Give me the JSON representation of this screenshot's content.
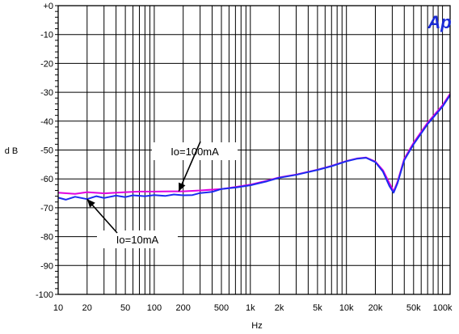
{
  "chart_data": {
    "type": "line",
    "xscale": "log",
    "xlim": [
      10,
      120000
    ],
    "ylim": [
      -100,
      0
    ],
    "xlabel": "Hz",
    "ylabel": "d B",
    "xticks": [
      {
        "v": 10,
        "label": "10"
      },
      {
        "v": 20,
        "label": "20"
      },
      {
        "v": 50,
        "label": "50"
      },
      {
        "v": 100,
        "label": "100"
      },
      {
        "v": 200,
        "label": "200"
      },
      {
        "v": 500,
        "label": "500"
      },
      {
        "v": 1000,
        "label": "1k"
      },
      {
        "v": 2000,
        "label": "2k"
      },
      {
        "v": 5000,
        "label": "5k"
      },
      {
        "v": 10000,
        "label": "10k"
      },
      {
        "v": 20000,
        "label": "20k"
      },
      {
        "v": 50000,
        "label": "50k"
      },
      {
        "v": 100000,
        "label": "100k"
      }
    ],
    "yticks": [
      {
        "v": 0,
        "label": "+0"
      },
      {
        "v": -10,
        "label": "-10"
      },
      {
        "v": -20,
        "label": "-20"
      },
      {
        "v": -30,
        "label": "-30"
      },
      {
        "v": -40,
        "label": "-40"
      },
      {
        "v": -50,
        "label": "-50"
      },
      {
        "v": -60,
        "label": "-60"
      },
      {
        "v": -70,
        "label": "-70"
      },
      {
        "v": -80,
        "label": "-80"
      },
      {
        "v": -90,
        "label": "-90"
      },
      {
        "v": -100,
        "label": "-100"
      }
    ],
    "grid": true,
    "logo": "Ap",
    "series": [
      {
        "name": "Io=100mA",
        "color": "#e000e0",
        "points": [
          [
            10,
            -64.8
          ],
          [
            15,
            -65.2
          ],
          [
            20,
            -64.6
          ],
          [
            30,
            -65.0
          ],
          [
            50,
            -64.6
          ],
          [
            70,
            -64.4
          ],
          [
            100,
            -64.4
          ],
          [
            150,
            -64.3
          ],
          [
            200,
            -64.3
          ],
          [
            300,
            -64.0
          ],
          [
            500,
            -63.5
          ],
          [
            700,
            -62.8
          ],
          [
            1000,
            -62.0
          ],
          [
            1500,
            -60.6
          ],
          [
            2000,
            -59.5
          ],
          [
            3000,
            -58.5
          ],
          [
            5000,
            -56.8
          ],
          [
            7000,
            -55.5
          ],
          [
            10000,
            -53.8
          ],
          [
            13000,
            -52.9
          ],
          [
            16000,
            -52.6
          ],
          [
            20000,
            -54.0
          ],
          [
            24000,
            -57.0
          ],
          [
            28000,
            -61.5
          ],
          [
            31000,
            -64.3
          ],
          [
            34000,
            -61.0
          ],
          [
            40000,
            -53.0
          ],
          [
            50000,
            -47.5
          ],
          [
            70000,
            -40.5
          ],
          [
            100000,
            -34.5
          ],
          [
            120000,
            -30.5
          ]
        ]
      },
      {
        "name": "Io=10mA",
        "color": "#1c2cf0",
        "points": [
          [
            10,
            -66.5
          ],
          [
            12,
            -67.2
          ],
          [
            15,
            -66.2
          ],
          [
            20,
            -67.0
          ],
          [
            25,
            -66.0
          ],
          [
            30,
            -66.6
          ],
          [
            40,
            -65.8
          ],
          [
            50,
            -66.3
          ],
          [
            60,
            -65.7
          ],
          [
            80,
            -66.0
          ],
          [
            100,
            -65.6
          ],
          [
            130,
            -65.9
          ],
          [
            160,
            -65.4
          ],
          [
            200,
            -65.7
          ],
          [
            250,
            -65.6
          ],
          [
            300,
            -64.9
          ],
          [
            400,
            -64.5
          ],
          [
            500,
            -63.5
          ],
          [
            700,
            -63.0
          ],
          [
            1000,
            -62.2
          ],
          [
            1500,
            -60.8
          ],
          [
            2000,
            -59.6
          ],
          [
            3000,
            -58.6
          ],
          [
            5000,
            -56.9
          ],
          [
            7000,
            -55.6
          ],
          [
            10000,
            -53.9
          ],
          [
            13000,
            -53.0
          ],
          [
            16000,
            -52.7
          ],
          [
            20000,
            -54.2
          ],
          [
            24000,
            -57.5
          ],
          [
            28000,
            -62.5
          ],
          [
            31000,
            -64.8
          ],
          [
            34000,
            -61.5
          ],
          [
            40000,
            -53.5
          ],
          [
            50000,
            -48.0
          ],
          [
            70000,
            -41.0
          ],
          [
            100000,
            -35.0
          ],
          [
            120000,
            -31.0
          ]
        ]
      }
    ],
    "annotations": [
      {
        "text": "Io=100mA",
        "series": 0,
        "at": 180
      },
      {
        "text": "Io=10mA",
        "series": 1,
        "at": 20
      }
    ]
  }
}
